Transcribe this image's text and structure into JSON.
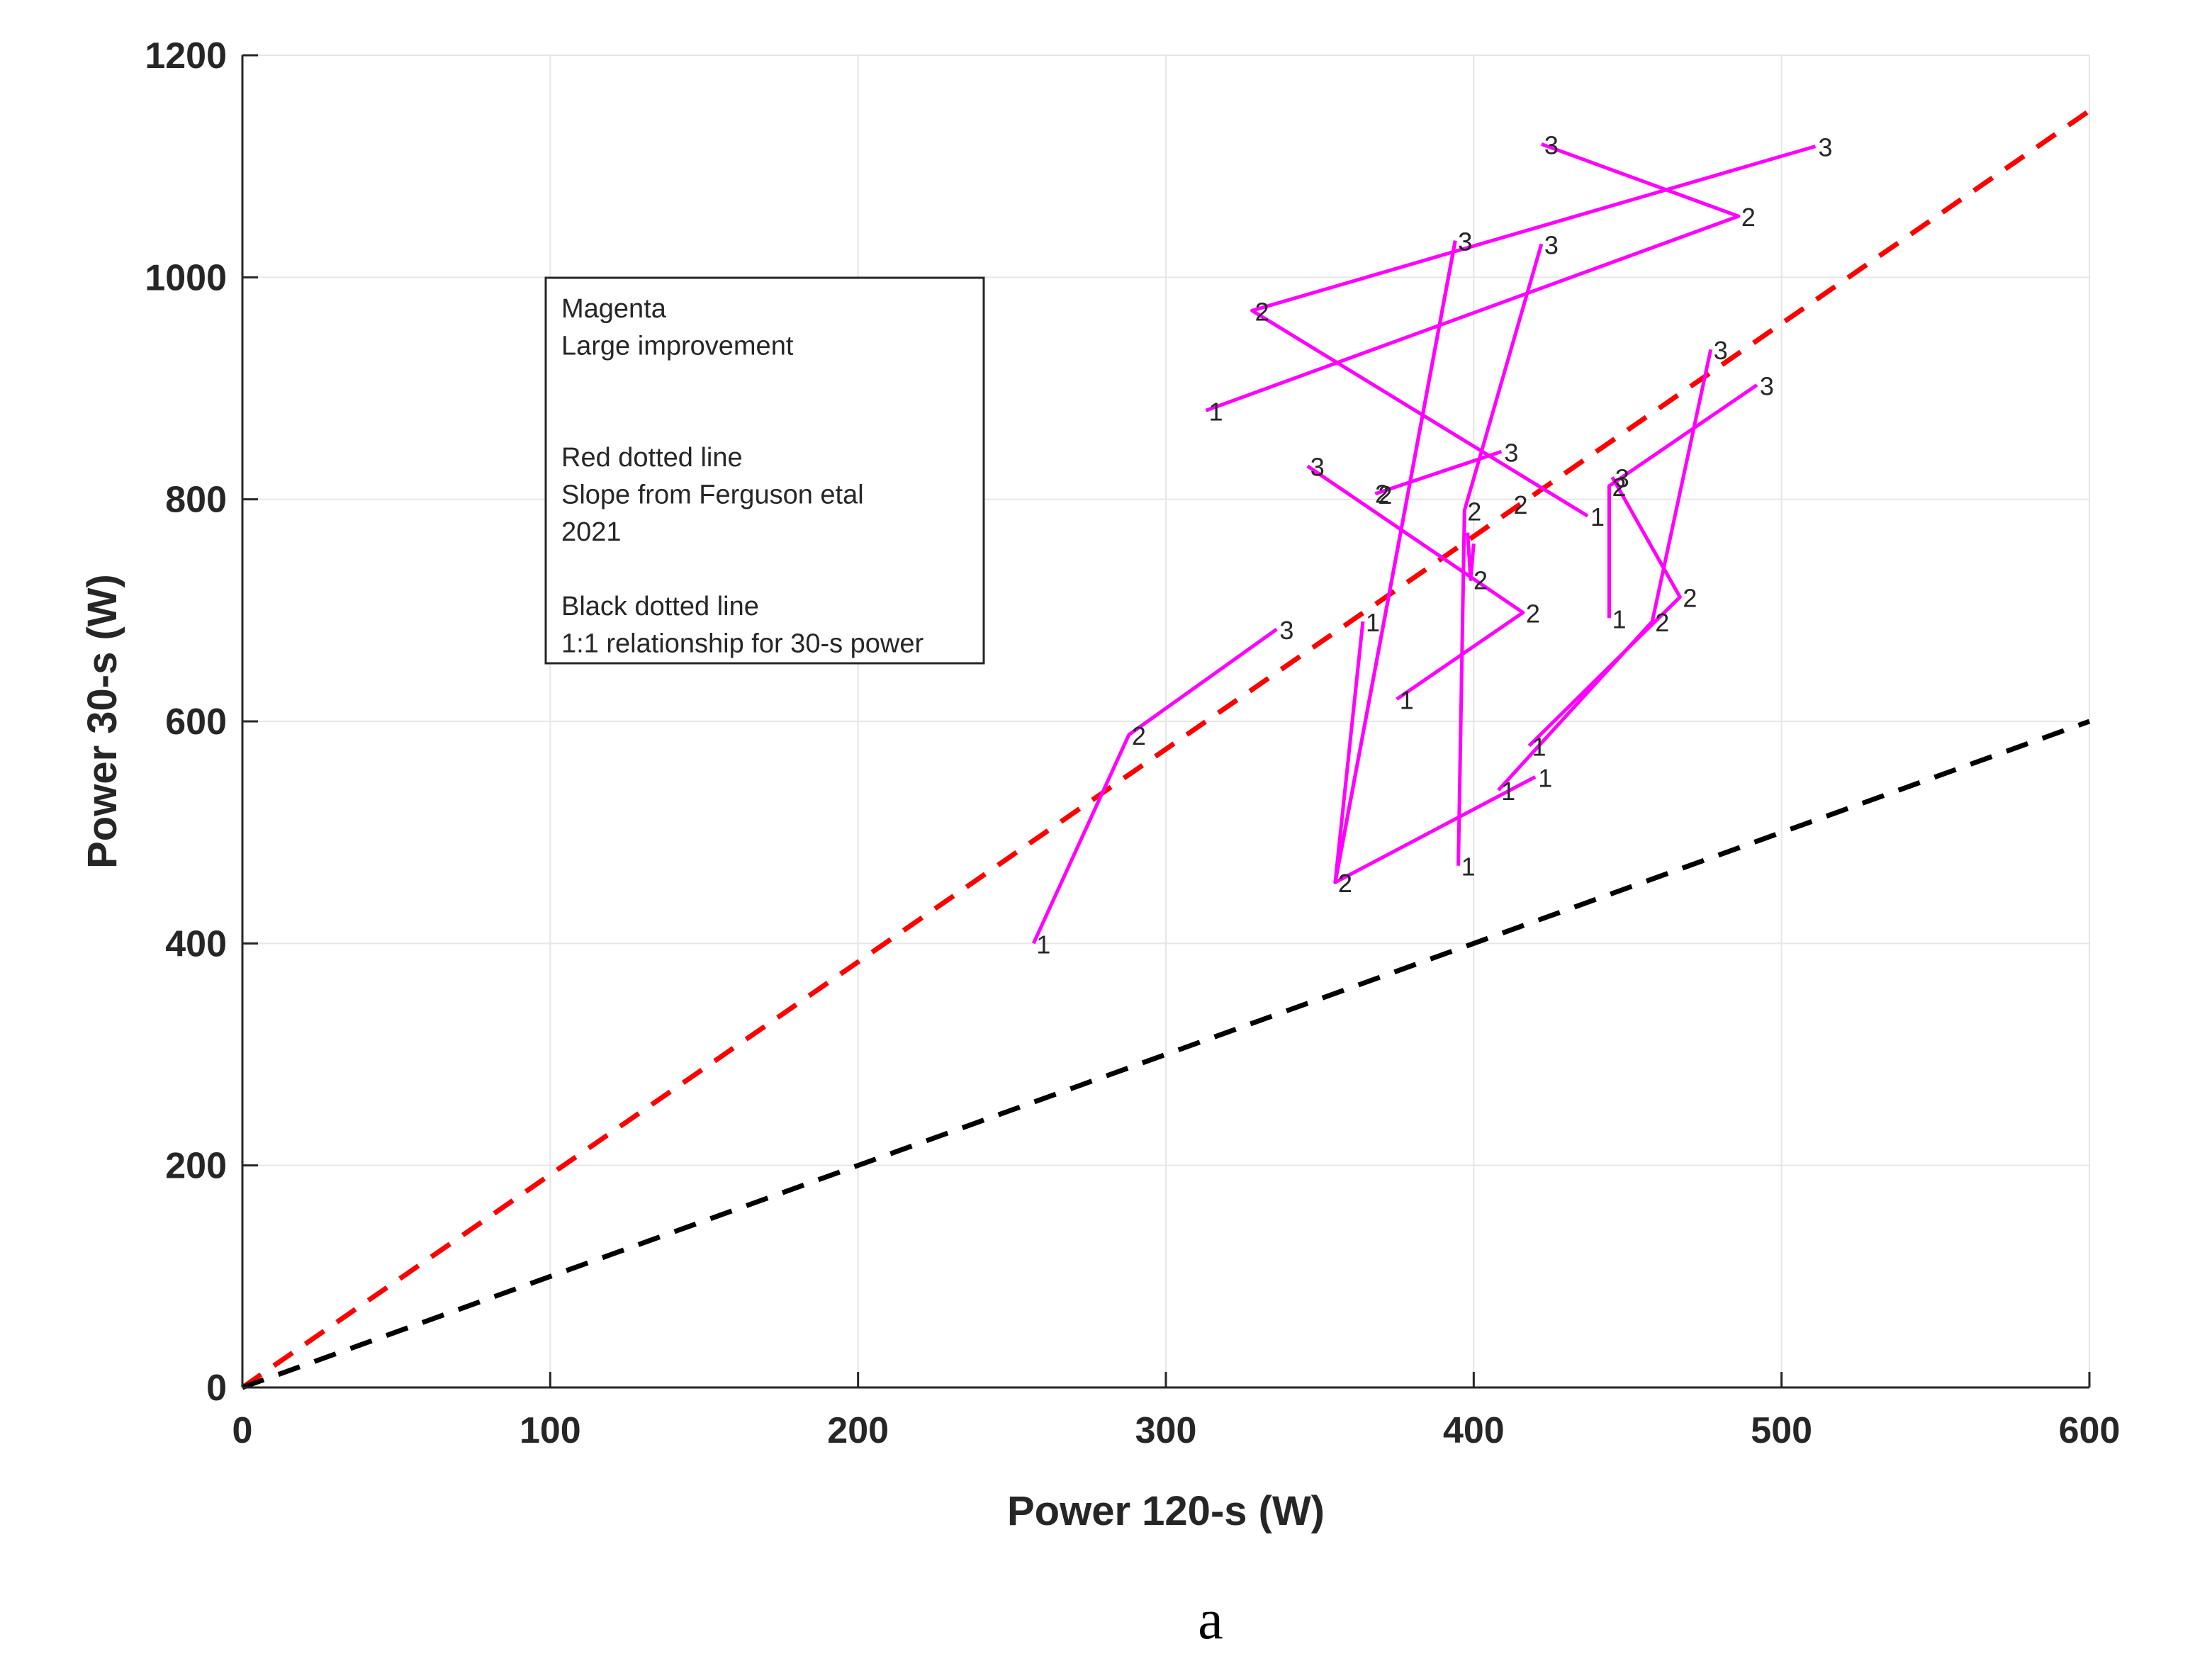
{
  "chart_data": {
    "type": "line",
    "xlabel": "Power 120-s (W)",
    "ylabel": "Power 30-s (W)",
    "xlim": [
      0,
      600
    ],
    "ylim": [
      0,
      1200
    ],
    "xticks": [
      "0",
      "100",
      "200",
      "300",
      "400",
      "500",
      "600"
    ],
    "yticks": [
      "0",
      "200",
      "400",
      "600",
      "800",
      "1000",
      "1200"
    ],
    "grid": true,
    "caption": "a",
    "legend": {
      "placement": "upper-left",
      "lines": [
        "Magenta",
        "Large improvement",
        "",
        "",
        "Red dotted line",
        "Slope from Ferguson etal",
        "2021",
        "",
        "Black dotted line",
        "1:1 relationship for 30-s power"
      ]
    },
    "reference_lines": [
      {
        "style": "dashed",
        "color": "#ff0000",
        "x": [
          0,
          600
        ],
        "y": [
          0,
          1150
        ]
      },
      {
        "style": "dashed",
        "color": "#000000",
        "x": [
          0,
          600
        ],
        "y": [
          0,
          600
        ]
      }
    ],
    "series_color": "#ff00ff",
    "series": [
      {
        "points": [
          [
            257,
            400
          ],
          [
            288,
            588
          ],
          [
            336,
            683
          ]
        ],
        "labels": [
          "1",
          "2",
          "3"
        ]
      },
      {
        "points": [
          [
            313,
            880
          ],
          [
            486,
            1055
          ],
          [
            422,
            1120
          ]
        ],
        "labels": [
          "1",
          "2",
          "3"
        ]
      },
      {
        "points": [
          [
            437,
            785
          ],
          [
            328,
            970
          ],
          [
            511,
            1118
          ]
        ],
        "labels": [
          "1",
          "2",
          "3"
        ]
      },
      {
        "points": [
          [
            395,
            470
          ],
          [
            397,
            790
          ],
          [
            422,
            1030
          ]
        ],
        "labels": [
          "1",
          "2",
          "3"
        ]
      },
      {
        "points": [
          [
            364,
            690
          ],
          [
            355,
            455
          ],
          [
            394,
            1033
          ]
        ],
        "labels": [
          "1",
          "2",
          "3"
        ]
      },
      {
        "points": [
          [
            375,
            620
          ],
          [
            416,
            698
          ],
          [
            346,
            830
          ]
        ],
        "labels": [
          "1",
          "2",
          "3"
        ]
      },
      {
        "points": [
          [
            420,
            550
          ],
          [
            355,
            455
          ],
          [
            394,
            1033
          ]
        ],
        "labels": [
          "1",
          "2",
          "3"
        ]
      },
      {
        "points": [
          [
            444,
            693
          ],
          [
            444,
            812
          ],
          [
            492,
            903
          ]
        ],
        "labels": [
          "1",
          "2",
          "3"
        ]
      },
      {
        "points": [
          [
            408,
            538
          ],
          [
            458,
            690
          ],
          [
            477,
            935
          ]
        ],
        "labels": [
          "1",
          "2",
          "3"
        ]
      },
      {
        "points": [
          [
            418,
            578
          ],
          [
            467,
            712
          ],
          [
            445,
            820
          ]
        ],
        "labels": [
          "1",
          "2",
          "3"
        ]
      },
      {
        "points": [
          [
            398,
            770
          ],
          [
            399,
            728
          ],
          [
            400,
            760
          ]
        ],
        "labels": [
          "",
          "2",
          ""
        ]
      },
      {
        "points": [
          [
            368,
            805
          ],
          [
            409,
            843
          ]
        ],
        "labels": [
          "2",
          "3"
        ]
      }
    ],
    "extra_labels": [
      {
        "x": 412,
        "y": 796,
        "text": "2"
      },
      {
        "x": 367,
        "y": 806,
        "text": "2"
      }
    ]
  }
}
